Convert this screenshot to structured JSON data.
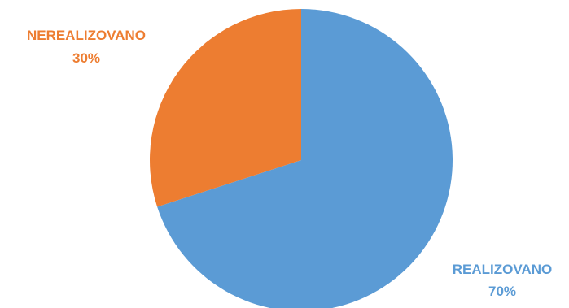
{
  "chart_data": {
    "type": "pie",
    "title": "",
    "slices": [
      {
        "label": "REALIZOVANO",
        "value": 70,
        "value_label": "70%",
        "color": "#5B9BD5"
      },
      {
        "label": "NEREALIZOVANO",
        "value": 30,
        "value_label": "30%",
        "color": "#ED7D31"
      }
    ],
    "start_angle_deg": 0,
    "direction": "clockwise",
    "legend": "none",
    "data_labels": "outside"
  }
}
